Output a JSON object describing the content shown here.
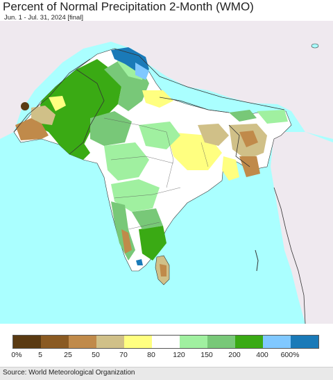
{
  "title": "Percent of Normal Precipitation 2-Month (WMO)",
  "subtitle": "Jun. 1 - Jul. 31, 2024 [final]",
  "legend": {
    "colors": [
      "#5a3a12",
      "#8a5a22",
      "#c08a4a",
      "#d0c088",
      "#ffff80",
      "#ffffff",
      "#a0f0a0",
      "#78c878",
      "#3aaa14",
      "#80c8ff",
      "#1a7ab8"
    ],
    "labels": [
      "0%",
      "5",
      "25",
      "50",
      "70",
      "80",
      "120",
      "150",
      "200",
      "400",
      "600%"
    ]
  },
  "credit": "Source: World Meteorological Organization"
}
